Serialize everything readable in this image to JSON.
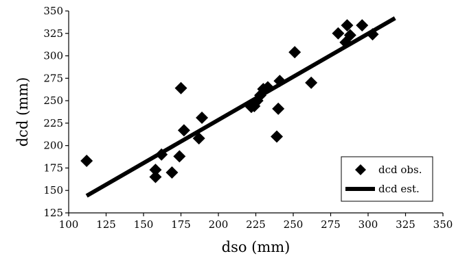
{
  "chart_data": {
    "type": "scatter",
    "title": "",
    "xlabel": "dso (mm)",
    "ylabel": "dcd (mm)",
    "xlim": [
      100,
      350
    ],
    "ylim": [
      125,
      350
    ],
    "x_ticks": [
      "100",
      "125",
      "150",
      "175",
      "200",
      "225",
      "250",
      "275",
      "300",
      "325",
      "350"
    ],
    "y_ticks": [
      "125",
      "150",
      "175",
      "200",
      "225",
      "250",
      "275",
      "300",
      "325",
      "350"
    ],
    "grid": false,
    "legend_position": "bottom-right",
    "series": [
      {
        "name": "dcd obs.",
        "type": "scatter",
        "marker": "diamond",
        "color": "#000000",
        "points": [
          [
            112,
            183
          ],
          [
            158,
            173
          ],
          [
            158,
            165
          ],
          [
            162,
            190
          ],
          [
            169,
            170
          ],
          [
            174,
            188
          ],
          [
            175,
            264
          ],
          [
            177,
            217
          ],
          [
            187,
            208
          ],
          [
            189,
            231
          ],
          [
            222,
            243
          ],
          [
            224,
            244
          ],
          [
            226,
            250
          ],
          [
            228,
            256
          ],
          [
            230,
            263
          ],
          [
            233,
            265
          ],
          [
            239,
            210
          ],
          [
            240,
            241
          ],
          [
            241,
            272
          ],
          [
            251,
            304
          ],
          [
            262,
            270
          ],
          [
            280,
            325
          ],
          [
            285,
            315
          ],
          [
            286,
            334
          ],
          [
            288,
            323
          ],
          [
            296,
            334
          ],
          [
            303,
            324
          ]
        ]
      },
      {
        "name": "dcd est.",
        "type": "line",
        "color": "#000000",
        "points": [
          [
            112,
            144
          ],
          [
            318,
            342
          ]
        ]
      }
    ]
  }
}
